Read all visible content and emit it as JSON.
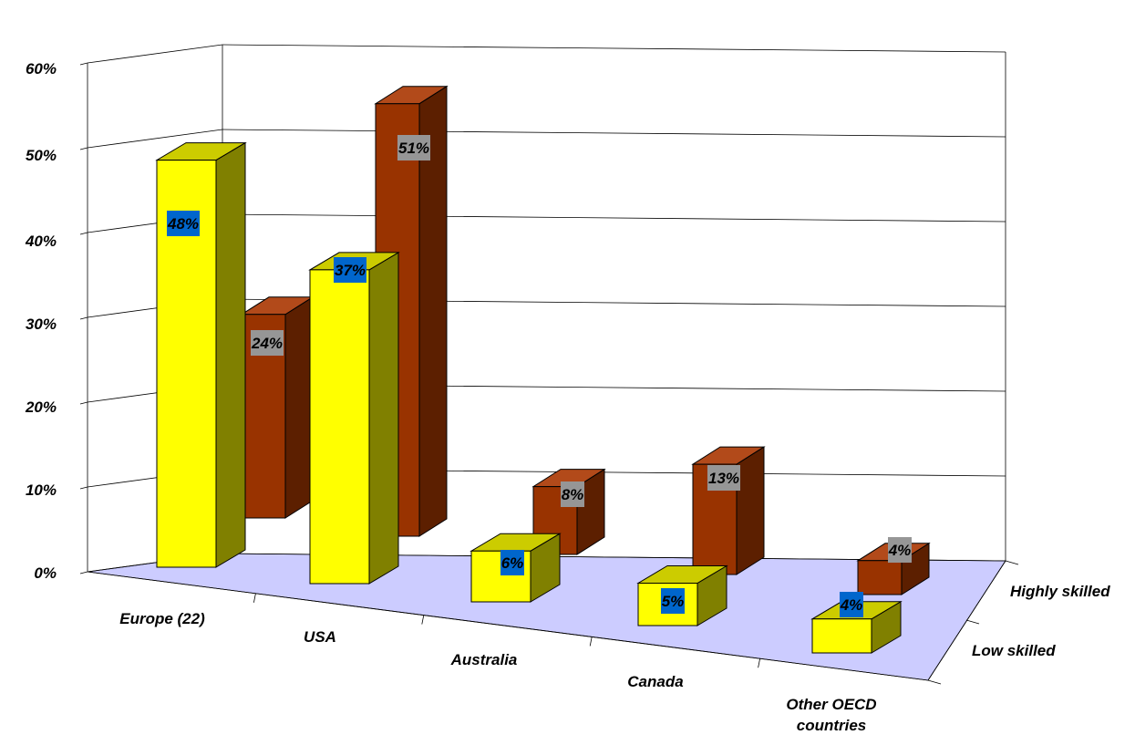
{
  "chart_data": {
    "type": "bar",
    "categories": [
      "Europe (22)",
      "USA",
      "Australia",
      "Canada",
      "Other OECD countries"
    ],
    "series": [
      {
        "name": "Low skilled",
        "values": [
          48,
          37,
          6,
          5,
          4
        ]
      },
      {
        "name": "Highly skilled",
        "values": [
          24,
          51,
          8,
          13,
          4
        ]
      }
    ],
    "ytick_labels": [
      "0%",
      "10%",
      "20%",
      "30%",
      "40%",
      "50%",
      "60%"
    ],
    "data_labels": {
      "Low skilled": [
        "48%",
        "37%",
        "6%",
        "5%",
        "4%"
      ],
      "Highly skilled": [
        "24%",
        "51%",
        "8%",
        "13%",
        "4%"
      ]
    },
    "ylim": [
      0,
      60
    ],
    "grid": true,
    "legend": "depth axis labels at right",
    "colors": {
      "low_front": "#FFFF00",
      "low_side": "#808000",
      "low_top": "#CCCC00",
      "high_front": "#993300",
      "high_side": "#5C1F00",
      "high_top": "#B24A1A",
      "floor": "#CCCCFF",
      "low_label_bg": "#0066CC",
      "high_label_bg": "#969696"
    }
  }
}
